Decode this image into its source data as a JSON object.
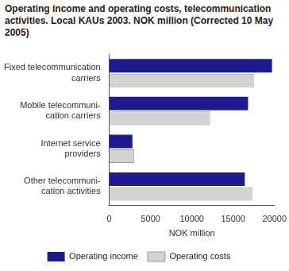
{
  "chart_data": {
    "type": "bar",
    "orientation": "horizontal",
    "title": "Operating income and operating costs, telecommunication activities. Local KAUs 2003. NOK million (Corrected 10 May 2005)",
    "categories": [
      "Fixed telecommunication\ncarriers",
      "Mobile telecommuni-\ncation carriers",
      "Internet service\nproviders",
      "Other telecommuni-\ncation activities"
    ],
    "series": [
      {
        "name": "Operating income",
        "color": "#1c1c8f",
        "values": [
          19700,
          16800,
          2800,
          16400
        ]
      },
      {
        "name": "Operating costs",
        "color": "#d3d3d3",
        "values": [
          17500,
          12200,
          3000,
          17300
        ]
      }
    ],
    "x_label": "NOK million",
    "xlim": [
      0,
      20000
    ],
    "xticks": [
      0,
      5000,
      10000,
      15000,
      20000
    ],
    "grid": false,
    "legend": "bottom"
  }
}
